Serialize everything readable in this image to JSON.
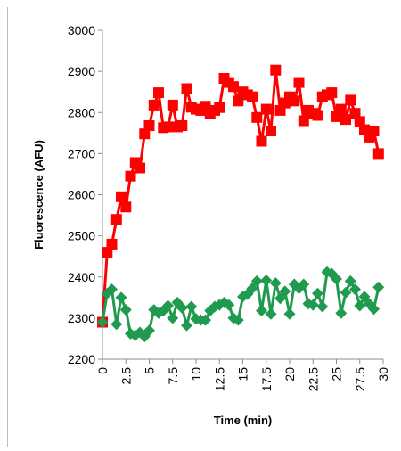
{
  "chart_data": {
    "type": "line",
    "xlabel": "Time (min)",
    "ylabel": "Fluorescence (AFU)",
    "xlim": [
      0,
      30
    ],
    "ylim": [
      2200,
      3000
    ],
    "xticks": [
      "0",
      "2.5",
      "5",
      "7.5",
      "10",
      "12.5",
      "15",
      "17.5",
      "20",
      "22.5",
      "25",
      "27.5",
      "30"
    ],
    "yticks": [
      "2200",
      "2300",
      "2400",
      "2500",
      "2600",
      "2700",
      "2800",
      "2900",
      "3000"
    ],
    "grid": false,
    "legend": "none",
    "series": [
      {
        "color": "#ff0000",
        "marker": "square",
        "x": [
          0,
          0.5,
          1,
          1.5,
          2,
          2.5,
          3,
          3.5,
          4,
          4.5,
          5,
          5.5,
          6,
          6.5,
          7,
          7.5,
          8,
          8.5,
          9,
          9.5,
          10,
          10.5,
          11,
          11.5,
          12,
          12.5,
          13,
          13.5,
          14,
          14.5,
          15,
          15.5,
          16,
          16.5,
          17,
          17.5,
          18,
          18.5,
          19,
          19.5,
          20,
          20.5,
          21,
          21.5,
          22,
          22.5,
          23,
          23.5,
          24,
          24.5,
          25,
          25.5,
          26,
          26.5,
          27,
          27.5,
          28,
          28.5,
          29,
          29.5
        ],
        "y": [
          2290,
          2460,
          2480,
          2540,
          2595,
          2570,
          2645,
          2678,
          2665,
          2748,
          2768,
          2818,
          2848,
          2763,
          2765,
          2818,
          2765,
          2768,
          2858,
          2813,
          2808,
          2805,
          2815,
          2798,
          2805,
          2812,
          2883,
          2873,
          2863,
          2828,
          2850,
          2843,
          2838,
          2788,
          2730,
          2808,
          2755,
          2903,
          2805,
          2823,
          2838,
          2828,
          2873,
          2780,
          2805,
          2798,
          2793,
          2838,
          2843,
          2848,
          2790,
          2808,
          2783,
          2830,
          2798,
          2778,
          2758,
          2740,
          2755,
          2700
        ]
      },
      {
        "color": "#1f9a4f",
        "marker": "diamond",
        "x": [
          0,
          0.5,
          1,
          1.5,
          2,
          2.5,
          3,
          3.5,
          4,
          4.5,
          5,
          5.5,
          6,
          6.5,
          7,
          7.5,
          8,
          8.5,
          9,
          9.5,
          10,
          10.5,
          11,
          11.5,
          12,
          12.5,
          13,
          13.5,
          14,
          14.5,
          15,
          15.5,
          16,
          16.5,
          17,
          17.5,
          18,
          18.5,
          19,
          19.5,
          20,
          20.5,
          21,
          21.5,
          22,
          22.5,
          23,
          23.5,
          24,
          24.5,
          25,
          25.5,
          26,
          26.5,
          27,
          27.5,
          28,
          28.5,
          29,
          29.5
        ],
        "y": [
          2290,
          2360,
          2370,
          2285,
          2350,
          2320,
          2262,
          2258,
          2265,
          2255,
          2270,
          2320,
          2312,
          2318,
          2330,
          2300,
          2338,
          2325,
          2282,
          2328,
          2298,
          2295,
          2295,
          2318,
          2328,
          2332,
          2338,
          2332,
          2300,
          2295,
          2352,
          2358,
          2372,
          2390,
          2318,
          2392,
          2310,
          2385,
          2348,
          2365,
          2310,
          2382,
          2372,
          2382,
          2335,
          2332,
          2360,
          2328,
          2412,
          2408,
          2395,
          2312,
          2362,
          2390,
          2370,
          2330,
          2352,
          2335,
          2322,
          2375
        ]
      }
    ]
  }
}
